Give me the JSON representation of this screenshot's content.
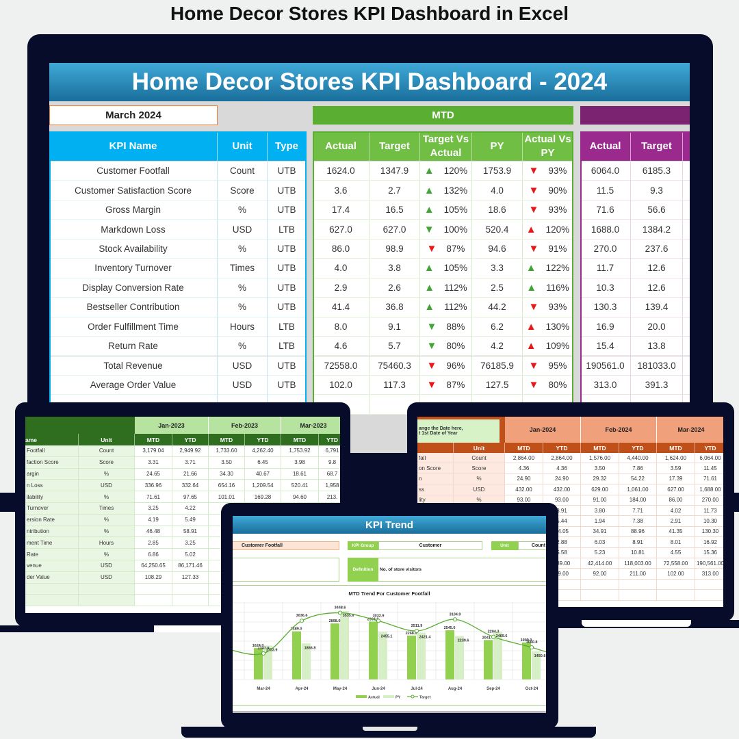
{
  "page_title": "Home Decor Stores KPI Dashboard in Excel",
  "main": {
    "title": "Home Decor Stores KPI Dashboard - 2024",
    "month": "March 2024",
    "mtd_label": "MTD",
    "headers": {
      "kpi": "KPI Name",
      "unit": "Unit",
      "type": "Type",
      "actual": "Actual",
      "target": "Target",
      "tva": "Target Vs Actual",
      "py": "PY",
      "avp": "Actual Vs PY",
      "ytd_actual": "Actual",
      "ytd_target": "Target"
    },
    "rows": [
      {
        "name": "Customer Footfall",
        "unit": "Count",
        "type": "UTB",
        "actual": "1624.0",
        "target": "1347.9",
        "tva_dir": "up-green",
        "tva": "120%",
        "py": "1753.9",
        "avp_dir": "down-red",
        "avp": "93%",
        "ytd_actual": "6064.0",
        "ytd_target": "6185.3"
      },
      {
        "name": "Customer Satisfaction Score",
        "unit": "Score",
        "type": "UTB",
        "actual": "3.6",
        "target": "2.7",
        "tva_dir": "up-green",
        "tva": "132%",
        "py": "4.0",
        "avp_dir": "down-red",
        "avp": "90%",
        "ytd_actual": "11.5",
        "ytd_target": "9.3"
      },
      {
        "name": "Gross Margin",
        "unit": "%",
        "type": "UTB",
        "actual": "17.4",
        "target": "16.5",
        "tva_dir": "up-green",
        "tva": "105%",
        "py": "18.6",
        "avp_dir": "down-red",
        "avp": "93%",
        "ytd_actual": "71.6",
        "ytd_target": "56.6"
      },
      {
        "name": "Markdown Loss",
        "unit": "USD",
        "type": "LTB",
        "actual": "627.0",
        "target": "627.0",
        "tva_dir": "down-green",
        "tva": "100%",
        "py": "520.4",
        "avp_dir": "up-red",
        "avp": "120%",
        "ytd_actual": "1688.0",
        "ytd_target": "1384.2"
      },
      {
        "name": "Stock Availability",
        "unit": "%",
        "type": "UTB",
        "actual": "86.0",
        "target": "98.9",
        "tva_dir": "down-red",
        "tva": "87%",
        "py": "94.6",
        "avp_dir": "down-red",
        "avp": "91%",
        "ytd_actual": "270.0",
        "ytd_target": "237.6"
      },
      {
        "name": "Inventory Turnover",
        "unit": "Times",
        "type": "UTB",
        "actual": "4.0",
        "target": "3.8",
        "tva_dir": "up-green",
        "tva": "105%",
        "py": "3.3",
        "avp_dir": "up-green",
        "avp": "122%",
        "ytd_actual": "11.7",
        "ytd_target": "12.6"
      },
      {
        "name": "Display Conversion Rate",
        "unit": "%",
        "type": "UTB",
        "actual": "2.9",
        "target": "2.6",
        "tva_dir": "up-green",
        "tva": "112%",
        "py": "2.5",
        "avp_dir": "up-green",
        "avp": "116%",
        "ytd_actual": "10.3",
        "ytd_target": "12.6"
      },
      {
        "name": "Bestseller Contribution",
        "unit": "%",
        "type": "UTB",
        "actual": "41.4",
        "target": "36.8",
        "tva_dir": "up-green",
        "tva": "112%",
        "py": "44.2",
        "avp_dir": "down-red",
        "avp": "93%",
        "ytd_actual": "130.3",
        "ytd_target": "139.4"
      },
      {
        "name": "Order Fulfillment Time",
        "unit": "Hours",
        "type": "LTB",
        "actual": "8.0",
        "target": "9.1",
        "tva_dir": "down-green",
        "tva": "88%",
        "py": "6.2",
        "avp_dir": "up-red",
        "avp": "130%",
        "ytd_actual": "16.9",
        "ytd_target": "20.0"
      },
      {
        "name": "Return Rate",
        "unit": "%",
        "type": "LTB",
        "actual": "4.6",
        "target": "5.7",
        "tva_dir": "down-green",
        "tva": "80%",
        "py": "4.2",
        "avp_dir": "up-red",
        "avp": "109%",
        "ytd_actual": "15.4",
        "ytd_target": "13.8"
      },
      {
        "name": "Total Revenue",
        "unit": "USD",
        "type": "UTB",
        "actual": "72558.0",
        "target": "75460.3",
        "tva_dir": "down-red",
        "tva": "96%",
        "py": "76185.9",
        "avp_dir": "down-red",
        "avp": "95%",
        "ytd_actual": "190561.0",
        "ytd_target": "181033.0"
      },
      {
        "name": "Average Order Value",
        "unit": "USD",
        "type": "UTB",
        "actual": "102.0",
        "target": "117.3",
        "tva_dir": "down-red",
        "tva": "87%",
        "py": "127.5",
        "avp_dir": "down-red",
        "avp": "80%",
        "ytd_actual": "313.0",
        "ytd_target": "391.3"
      }
    ],
    "colors": {
      "kpi_header": "#00b0f0",
      "mtd": "#5aae32",
      "ytd": "#7b2371"
    }
  },
  "tablet_left": {
    "months": [
      "Jan-2023",
      "Feb-2023",
      "Mar-2023"
    ],
    "name_header": "ame",
    "unit_header": "Unit",
    "mtd": "MTD",
    "ytd": "YTD",
    "rows": [
      [
        "Footfall",
        "Count",
        "3,179.04",
        "2,949.92",
        "1,733.60",
        "4,262.40",
        "1,753.92",
        "6,791"
      ],
      [
        "faction Score",
        "Score",
        "3.31",
        "3.71",
        "3.50",
        "6.45",
        "3.98",
        "9.8"
      ],
      [
        "argin",
        "%",
        "24.65",
        "21.66",
        "34.30",
        "40.67",
        "18.61",
        "68.7"
      ],
      [
        "n Loss",
        "USD",
        "336.96",
        "332.64",
        "654.16",
        "1,209.54",
        "520.41",
        "1,958"
      ],
      [
        "ilability",
        "%",
        "71.61",
        "97.65",
        "101.01",
        "169.28",
        "94.60",
        "213."
      ],
      [
        "Turnover",
        "Times",
        "3.25",
        "4.22",
        "",
        "",
        "",
        ""
      ],
      [
        "ersion Rate",
        "%",
        "4.19",
        "5.49",
        "",
        "",
        "",
        ""
      ],
      [
        "ntribution",
        "%",
        "46.48",
        "58.91",
        "",
        "",
        "",
        ""
      ],
      [
        "ment Time",
        "Hours",
        "2.85",
        "3.25",
        "",
        "",
        "",
        ""
      ],
      [
        "Rate",
        "%",
        "6.86",
        "5.02",
        "",
        "",
        "",
        ""
      ],
      [
        "venue",
        "USD",
        "64,250.65",
        "86,171.46",
        "39,",
        "",
        "",
        ""
      ],
      [
        "der Value",
        "USD",
        "108.29",
        "127.33",
        "8",
        "",
        "",
        ""
      ]
    ]
  },
  "tablet_right": {
    "callout": [
      "ange the Date here,",
      "t 1st Date of Year"
    ],
    "months": [
      "Jan-2024",
      "Feb-2024",
      "Mar-2024"
    ],
    "unit_header": "Unit",
    "mtd": "MTD",
    "ytd": "YTD",
    "rows": [
      [
        "fall",
        "Count",
        "2,864.00",
        "2,864.00",
        "1,576.00",
        "4,440.00",
        "1,624.00",
        "6,064.00"
      ],
      [
        "on Score",
        "Score",
        "4.36",
        "4.36",
        "3.50",
        "7.86",
        "3.59",
        "11.45"
      ],
      [
        "n",
        "%",
        "24.90",
        "24.90",
        "29.32",
        "54.22",
        "17.39",
        "71.61"
      ],
      [
        "ss",
        "USD",
        "432.00",
        "432.00",
        "629.00",
        "1,061.00",
        "627.00",
        "1,688.00"
      ],
      [
        "lity",
        "%",
        "93.00",
        "93.00",
        "91.00",
        "184.00",
        "86.00",
        "270.00"
      ],
      [
        "",
        "",
        "",
        "3.91",
        "3.80",
        "7.71",
        "4.02",
        "11.73"
      ],
      [
        "",
        "",
        "",
        "5.44",
        "1.94",
        "7.38",
        "2.91",
        "10.30"
      ],
      [
        "",
        "",
        "",
        "54.05",
        "34.91",
        "88.96",
        "41.35",
        "130.30"
      ],
      [
        "",
        "",
        "",
        "2.88",
        "6.03",
        "8.91",
        "8.01",
        "16.92"
      ],
      [
        "",
        "",
        "",
        "5.58",
        "5.23",
        "10.81",
        "4.55",
        "15.36"
      ],
      [
        "",
        "",
        "",
        "589.00",
        "42,414.00",
        "118,003.00",
        "72,558.00",
        "190,561.00"
      ],
      [
        "",
        "",
        "",
        "19.00",
        "92.00",
        "211.00",
        "102.00",
        "313.00"
      ]
    ]
  },
  "trend": {
    "title": "KPI Trend",
    "kpi_selected": "Customer Footfall",
    "kpi_group_label": "KPI Group",
    "kpi_group": "Customer",
    "unit_label": "Unit",
    "unit": "Count",
    "definition_label": "Definition",
    "definition": "No. of store visitors"
  },
  "chart_data": {
    "type": "bar",
    "title": "MTD Trend For Customer Footfall",
    "categories": [
      "Mar-24",
      "Apr-24",
      "May-24",
      "Jun-24",
      "Jul-24",
      "Aug-24",
      "Sep-24",
      "Oct-24"
    ],
    "series": [
      {
        "name": "Actual",
        "type": "bar",
        "color": "#92d050",
        "values": [
          1624.0,
          2489.0,
          2898.0,
          2994.0,
          2268.0,
          2545.0,
          2041.0,
          1909.0
        ]
      },
      {
        "name": "PY",
        "type": "bar",
        "color": "#d6efc7",
        "values": [
          1753.9,
          1866.8,
          3535.6,
          2455.1,
          2421.4,
          2239.6,
          2469.6,
          1450.8
        ]
      },
      {
        "name": "Target",
        "type": "line",
        "color": "#5aae32",
        "values": [
          1347.9,
          3036.6,
          3448.6,
          3032.9,
          2511.9,
          3104.9,
          2204.3,
          1660.8
        ]
      }
    ],
    "ylim": [
      0,
      4000
    ],
    "grid": true,
    "legend": "bottom"
  }
}
